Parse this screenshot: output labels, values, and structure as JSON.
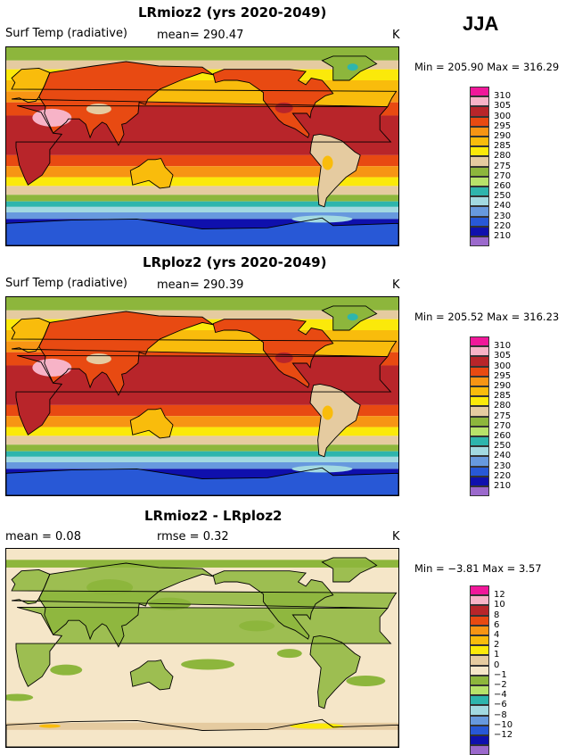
{
  "season": "JJA",
  "panels": [
    {
      "title": "LRmioz2 (yrs 2020-2049)",
      "variable": "Surf Temp (radiative)",
      "stat": "mean= 290.47",
      "units": "K",
      "minmax": "Min = 205.90 Max = 316.29",
      "palette": "abs"
    },
    {
      "title": "LRploz2 (yrs 2020-2049)",
      "variable": "Surf Temp (radiative)",
      "stat": "mean= 290.39",
      "units": "K",
      "minmax": "Min = 205.52 Max = 316.23",
      "palette": "abs"
    },
    {
      "title": "LRmioz2 - LRploz2",
      "variable": "mean =   0.08",
      "stat": "rmse =   0.32",
      "units": "K",
      "minmax": "Min = −3.81 Max =    3.57",
      "palette": "diff"
    }
  ],
  "colorbars": {
    "abs": {
      "colors": [
        "#f0189a",
        "#f7b3c7",
        "#b8252a",
        "#e84a12",
        "#f79514",
        "#f9bc0c",
        "#fbe90a",
        "#e5cba0",
        "#8db63c",
        "#b7e26a",
        "#2eb5ad",
        "#a2d9e1",
        "#6799de",
        "#2858d6",
        "#0f10ad",
        "#9b69cc"
      ],
      "labels": [
        "310",
        "305",
        "300",
        "295",
        "290",
        "285",
        "280",
        "275",
        "270",
        "260",
        "250",
        "240",
        "230",
        "220",
        "210"
      ]
    },
    "diff": {
      "colors": [
        "#f0189a",
        "#f7b3c7",
        "#b8252a",
        "#e84a12",
        "#f79514",
        "#f9bc0c",
        "#fbe90a",
        "#e5cba0",
        "#f5e6c8",
        "#8db63c",
        "#b7e26a",
        "#2eb5ad",
        "#a2d9e1",
        "#6799de",
        "#2858d6",
        "#0f10ad",
        "#9b69cc"
      ],
      "labels": [
        "12",
        "10",
        "8",
        "6",
        "4",
        "2",
        "1",
        "0",
        "−1",
        "−2",
        "−4",
        "−6",
        "−8",
        "−10",
        "−12"
      ]
    }
  }
}
